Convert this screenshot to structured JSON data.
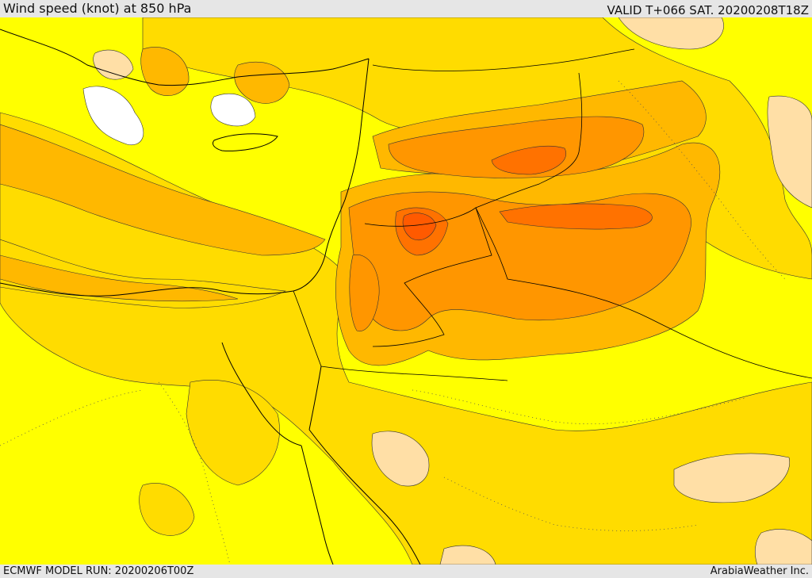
{
  "header": {
    "title": "Wind speed (knot) at 850 hPa",
    "valid": "VALID T+066 SAT. 20200208T18Z"
  },
  "footer": {
    "model_run": "ECMWF MODEL RUN: 20200206T00Z",
    "credit": "ArabiaWeather Inc."
  },
  "map": {
    "field": "wind speed",
    "level": "850 hPa",
    "units": "knot",
    "colors": {
      "white": "#ffffff",
      "pale": "#ffdfa6",
      "yellow": "#ffff00",
      "gold": "#ffdc00",
      "amber": "#ffb800",
      "orange": "#ff9600",
      "dark_orange": "#ff7200",
      "red_orange": "#ff5a00",
      "coast": "#000000"
    }
  }
}
